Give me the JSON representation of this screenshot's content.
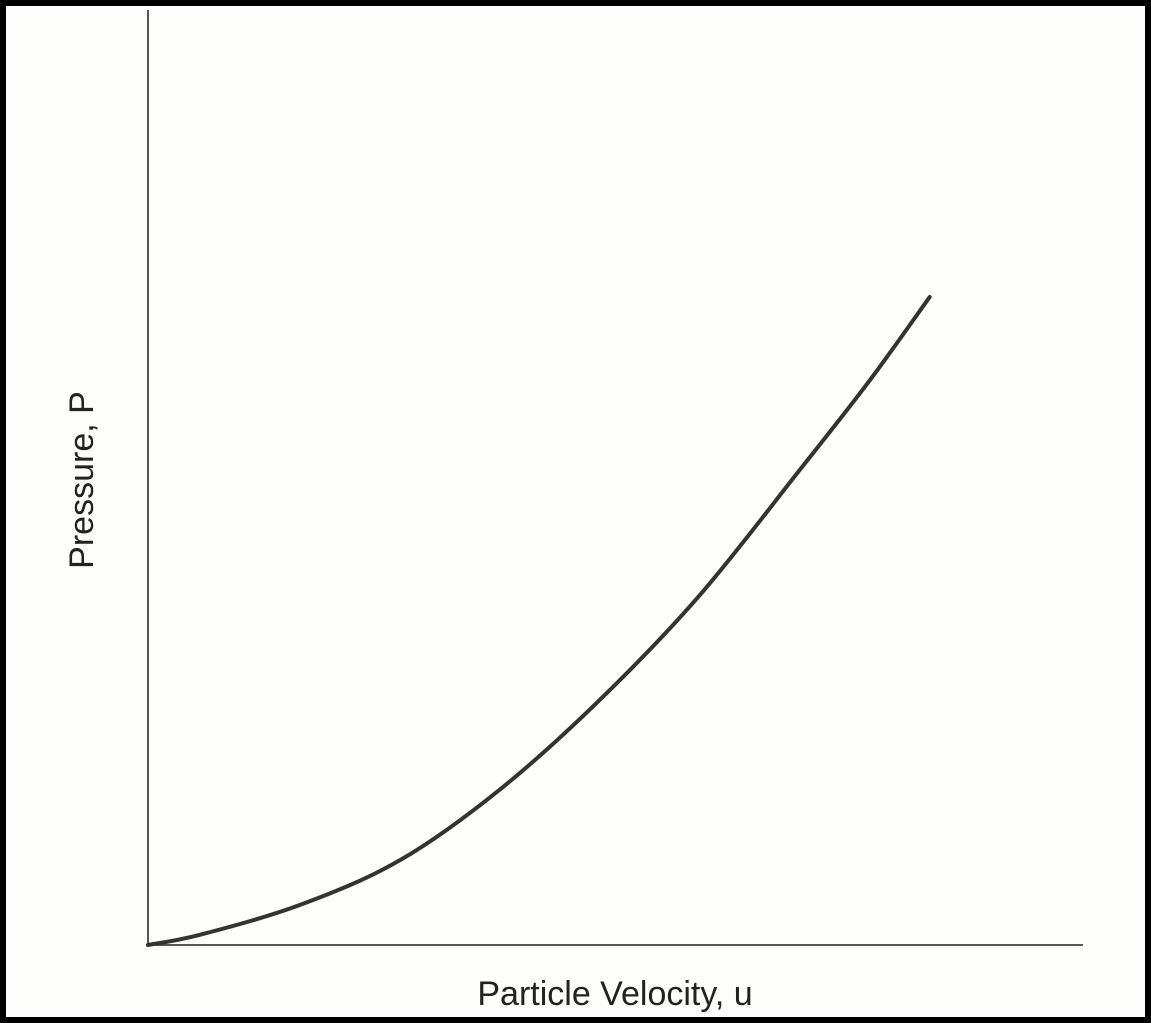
{
  "chart_data": {
    "type": "line",
    "x_label": "Particle Velocity, u",
    "y_label": "Pressure, P",
    "x": [
      0,
      5.6,
      16.3,
      27.0,
      37.6,
      48.3,
      59.0,
      69.7,
      77.2,
      83.6
    ],
    "values": [
      0,
      1.1,
      4.3,
      9.1,
      16.6,
      26.2,
      37.4,
      50.8,
      60.4,
      69.3
    ],
    "color": "#333333",
    "xlim": [
      0,
      100
    ],
    "ylim": [
      0,
      100
    ]
  }
}
